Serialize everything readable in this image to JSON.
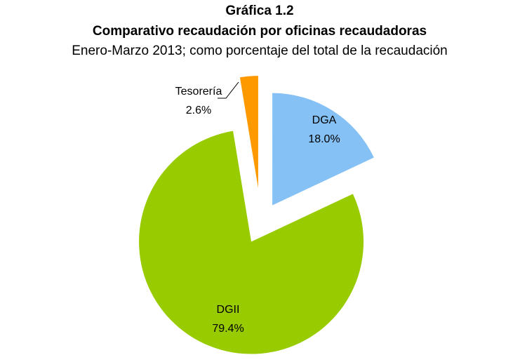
{
  "chart_data": {
    "type": "pie",
    "title": "Gráfica 1.2",
    "subtitle": "Comparativo recaudación por oficinas recaudadoras",
    "caption": "Enero-Marzo 2013; como porcentaje del total de la recaudación",
    "categories": [
      "DGA",
      "DGII",
      "Tesorería"
    ],
    "values": [
      18.0,
      79.4,
      2.6
    ],
    "value_labels": [
      "18.0%",
      "79.4%",
      "2.6%"
    ],
    "colors": [
      "#85c1f5",
      "#99cc00",
      "#ff9900"
    ]
  }
}
